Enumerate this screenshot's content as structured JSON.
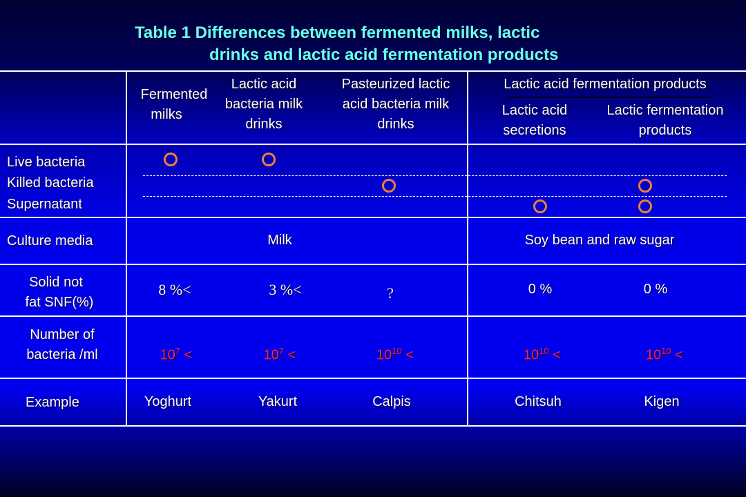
{
  "title": {
    "line1": "Table 1   Differences between fermented milks, lactic",
    "line2": "drinks and lactic acid fermentation products"
  },
  "header": {
    "col1": [
      "Fermented",
      "milks"
    ],
    "col2": [
      "Lactic acid",
      "bacteria milk",
      "drinks"
    ],
    "col3": [
      "Pasteurized lactic",
      "acid bacteria milk",
      "drinks"
    ],
    "group": "Lactic acid fermentation products",
    "col4": [
      "Lactic acid",
      "secretions"
    ],
    "col5": [
      "Lactic fermentation",
      "products"
    ]
  },
  "rows": {
    "bacteria_labels": [
      "Live bacteria",
      "Killed bacteria",
      "Supernatant"
    ],
    "bacteria_marks": {
      "symbol": "ring",
      "color": "#f08030",
      "live": [
        true,
        true,
        false,
        false,
        false
      ],
      "killed": [
        false,
        false,
        true,
        false,
        true
      ],
      "supernatant": [
        false,
        false,
        false,
        true,
        true
      ]
    },
    "culture_media": {
      "label": "Culture media",
      "milk": "Milk",
      "soy": "Soy bean and raw sugar"
    },
    "snf": {
      "label": [
        "Solid not",
        "fat SNF(%)"
      ],
      "values": [
        "8 %<",
        "3 %<",
        "?",
        "0 %",
        "0 %"
      ]
    },
    "bacteria_count": {
      "label": [
        "Number of",
        "bacteria /ml"
      ],
      "values": [
        {
          "base": "10",
          "exp": "7",
          "suffix": "<"
        },
        {
          "base": "10",
          "exp": "7",
          "suffix": "<"
        },
        {
          "base": "10",
          "exp": "10",
          "suffix": "<"
        },
        {
          "base": "10",
          "exp": "10",
          "suffix": "<"
        },
        {
          "base": "10",
          "exp": "10",
          "suffix": "<"
        }
      ],
      "color": "#ff2050"
    },
    "example": {
      "label": "Example",
      "values": [
        "Yoghurt",
        "Yakurt",
        "Calpis",
        "Chitsuh",
        "Kigen"
      ]
    }
  },
  "colors": {
    "title": "#66ffff",
    "background": "#0000e6",
    "rule": "#ffffff"
  }
}
